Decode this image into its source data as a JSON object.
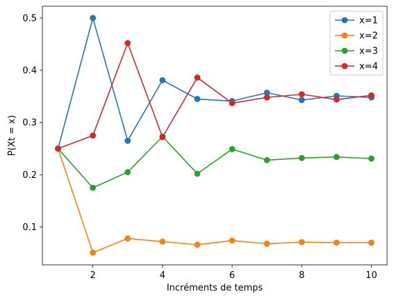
{
  "chart_data": {
    "type": "line",
    "title": "",
    "xlabel": "Incréments de temps",
    "ylabel": "P(Xt = x)",
    "x": [
      1,
      2,
      3,
      4,
      5,
      6,
      7,
      8,
      9,
      10
    ],
    "xlim": [
      0.55,
      10.45
    ],
    "ylim": [
      0.0275,
      0.5225
    ],
    "xticks": [
      2,
      4,
      6,
      8,
      10
    ],
    "yticks": [
      0.1,
      0.2,
      0.3,
      0.4,
      0.5
    ],
    "xtick_labels": [
      "2",
      "4",
      "6",
      "8",
      "10"
    ],
    "ytick_labels": [
      "0.1",
      "0.2",
      "0.3",
      "0.4",
      "0.5"
    ],
    "grid": false,
    "legend_position": "top-right",
    "series": [
      {
        "name": "x=1",
        "color": "#1f77b4",
        "values": [
          0.25,
          0.5,
          0.265,
          0.381,
          0.345,
          0.341,
          0.357,
          0.343,
          0.351,
          0.348
        ]
      },
      {
        "name": "x=2",
        "color": "#ff7f0e",
        "values": [
          0.25,
          0.051,
          0.078,
          0.072,
          0.066,
          0.074,
          0.068,
          0.071,
          0.07,
          0.07
        ]
      },
      {
        "name": "x=3",
        "color": "#2ca02c",
        "values": [
          0.25,
          0.175,
          0.205,
          0.273,
          0.202,
          0.249,
          0.228,
          0.232,
          0.234,
          0.231
        ]
      },
      {
        "name": "x=4",
        "color": "#d62728",
        "values": [
          0.25,
          0.275,
          0.452,
          0.272,
          0.386,
          0.337,
          0.348,
          0.354,
          0.344,
          0.352
        ]
      }
    ]
  }
}
